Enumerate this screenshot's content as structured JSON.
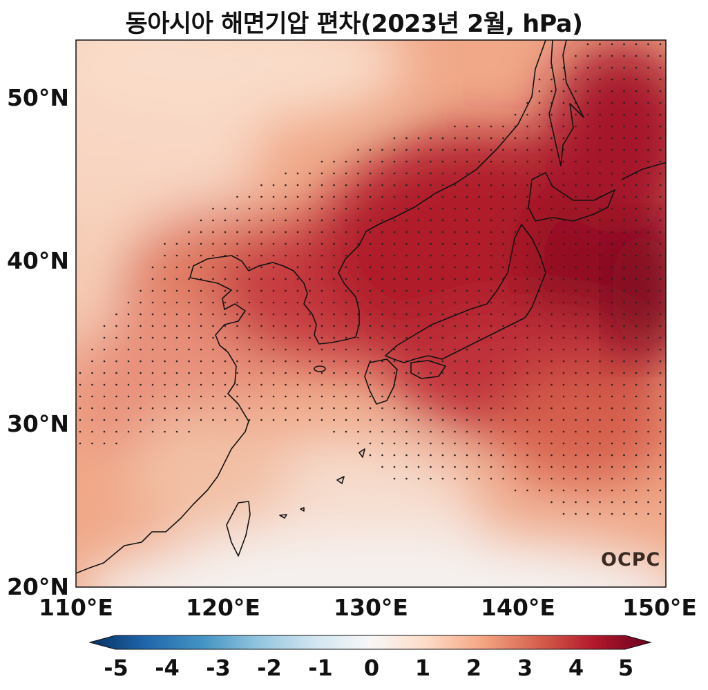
{
  "title": "동아시아 해면기압 편차(2023년 2월, hPa)",
  "map": {
    "lat_ticks": [
      "20°N",
      "30°N",
      "40°N",
      "50°N"
    ],
    "lon_ticks": [
      "110°E",
      "120°E",
      "130°E",
      "140°E",
      "150°E"
    ],
    "colormap": "RdBu_r"
  },
  "colorbar": {
    "ticks": [
      "-5",
      "-4",
      "-3",
      "-2",
      "-1",
      "0",
      "1",
      "2",
      "3",
      "4",
      "5"
    ],
    "min": -5,
    "max": 5,
    "colors": [
      "#053061",
      "#2166ac",
      "#4393c3",
      "#92c5de",
      "#d1e5f0",
      "#f7f7f7",
      "#fddbc7",
      "#f4a582",
      "#d6604d",
      "#b2182b",
      "#67001f"
    ]
  },
  "logo": "OCPC"
}
